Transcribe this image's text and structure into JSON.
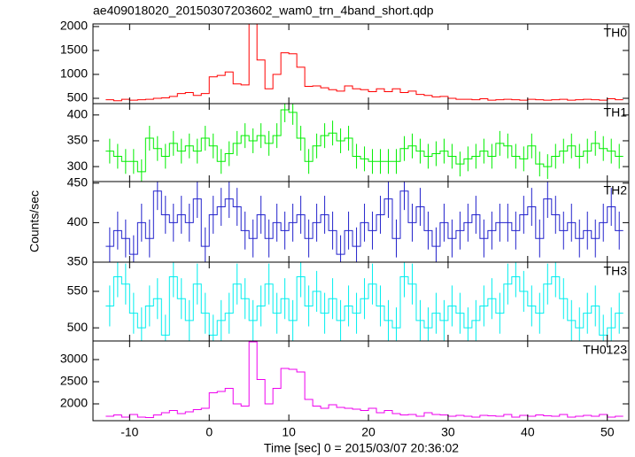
{
  "title": "ae409018020_20150307203602_wam0_trn_4band_short.qdp",
  "x_label": "Time [sec] 0 = 2015/03/07 20:36:02",
  "y_label": "Counts/sec",
  "xlim": [
    -14.6,
    52.7
  ],
  "xticks": [
    -10,
    0,
    10,
    20,
    30,
    40,
    50
  ],
  "x": [
    -12.5,
    -11.5,
    -10.5,
    -9.5,
    -8.5,
    -7.5,
    -6.5,
    -5.5,
    -4.5,
    -3.5,
    -2.5,
    -1.5,
    -0.5,
    0.5,
    1.5,
    2.5,
    3.5,
    4.5,
    5.5,
    6.5,
    7.5,
    8.5,
    9.5,
    10.5,
    11.5,
    12.5,
    13.5,
    14.5,
    15.5,
    16.5,
    17.5,
    18.5,
    19.5,
    20.5,
    21.5,
    22.5,
    23.5,
    24.5,
    25.5,
    26.5,
    27.5,
    28.5,
    29.5,
    30.5,
    31.5,
    32.5,
    33.5,
    34.5,
    35.5,
    36.5,
    37.5,
    38.5,
    39.5,
    40.5,
    41.5,
    42.5,
    43.5,
    44.5,
    45.5,
    46.5,
    47.5,
    48.5,
    49.5,
    50.5,
    51.5
  ],
  "chart_data": [
    {
      "type": "step",
      "name": "TH0",
      "color": "#ff0000",
      "ylim": [
        389,
        2055
      ],
      "yticks": [
        500,
        1000,
        1500,
        2000
      ],
      "values": [
        470,
        450,
        480,
        460,
        470,
        480,
        500,
        510,
        540,
        600,
        620,
        560,
        600,
        950,
        980,
        1050,
        800,
        780,
        2100,
        1300,
        700,
        1000,
        1450,
        1430,
        1150,
        750,
        760,
        720,
        680,
        650,
        760,
        700,
        680,
        640,
        700,
        640,
        700,
        620,
        650,
        580,
        560,
        530,
        540,
        500,
        480,
        480,
        470,
        490,
        460,
        470,
        480,
        470,
        460,
        480,
        470,
        460,
        470,
        480,
        460,
        470,
        480,
        470,
        460,
        490,
        470
      ]
    },
    {
      "type": "step",
      "name": "TH1",
      "color": "#00ee00",
      "ylim": [
        271,
        422
      ],
      "yticks": [
        300,
        350,
        400
      ],
      "error": 24,
      "values": [
        330,
        320,
        310,
        310,
        290,
        355,
        335,
        320,
        345,
        330,
        340,
        330,
        355,
        340,
        310,
        325,
        345,
        360,
        350,
        360,
        345,
        360,
        410,
        405,
        355,
        310,
        340,
        360,
        365,
        350,
        355,
        320,
        315,
        310,
        310,
        310,
        310,
        335,
        340,
        330,
        320,
        325,
        330,
        320,
        305,
        315,
        320,
        330,
        320,
        345,
        340,
        320,
        315,
        340,
        305,
        300,
        320,
        330,
        340,
        320,
        330,
        345,
        335,
        330,
        320
      ]
    },
    {
      "type": "step",
      "name": "TH2",
      "color": "#2222cc",
      "ylim": [
        350,
        452
      ],
      "yticks": [
        350,
        400,
        450
      ],
      "error": 24,
      "values": [
        370,
        390,
        380,
        360,
        400,
        380,
        440,
        410,
        400,
        410,
        400,
        430,
        370,
        410,
        420,
        430,
        420,
        390,
        380,
        410,
        380,
        400,
        390,
        400,
        410,
        380,
        400,
        410,
        390,
        360,
        390,
        370,
        400,
        390,
        410,
        430,
        380,
        440,
        400,
        420,
        390,
        370,
        400,
        380,
        390,
        400,
        410,
        380,
        390,
        400,
        400,
        390,
        410,
        420,
        380,
        430,
        410,
        390,
        400,
        380,
        390,
        380,
        400,
        420,
        390
      ]
    },
    {
      "type": "step",
      "name": "TH3",
      "color": "#00eeee",
      "ylim": [
        482,
        590
      ],
      "yticks": [
        500,
        550
      ],
      "error": 28,
      "values": [
        530,
        570,
        560,
        520,
        500,
        530,
        540,
        490,
        570,
        540,
        510,
        560,
        520,
        490,
        510,
        520,
        560,
        540,
        510,
        530,
        560,
        520,
        540,
        510,
        570,
        530,
        550,
        520,
        540,
        510,
        530,
        520,
        540,
        560,
        530,
        510,
        500,
        570,
        560,
        510,
        500,
        520,
        510,
        530,
        520,
        500,
        510,
        530,
        540,
        520,
        560,
        570,
        550,
        530,
        520,
        560,
        570,
        540,
        510,
        500,
        520,
        530,
        490,
        500,
        520
      ]
    },
    {
      "type": "step",
      "name": "TH0123",
      "color": "#ee00ee",
      "ylim": [
        1620,
        3420
      ],
      "yticks": [
        2000,
        2500,
        3000
      ],
      "values": [
        1720,
        1750,
        1700,
        1760,
        1700,
        1690,
        1750,
        1800,
        1850,
        1780,
        1820,
        1870,
        1900,
        2250,
        2280,
        2350,
        2000,
        1950,
        3400,
        2550,
        2000,
        2350,
        2800,
        2780,
        2720,
        2100,
        1950,
        1900,
        1980,
        1920,
        1900,
        1880,
        1850,
        1900,
        1800,
        1850,
        1780,
        1750,
        1760,
        1720,
        1800,
        1760,
        1750,
        1720,
        1740,
        1720,
        1700,
        1740,
        1730,
        1720,
        1760,
        1700,
        1740,
        1720,
        1750,
        1730,
        1720,
        1760,
        1700,
        1720,
        1740,
        1720,
        1760,
        1700,
        1720
      ]
    }
  ]
}
